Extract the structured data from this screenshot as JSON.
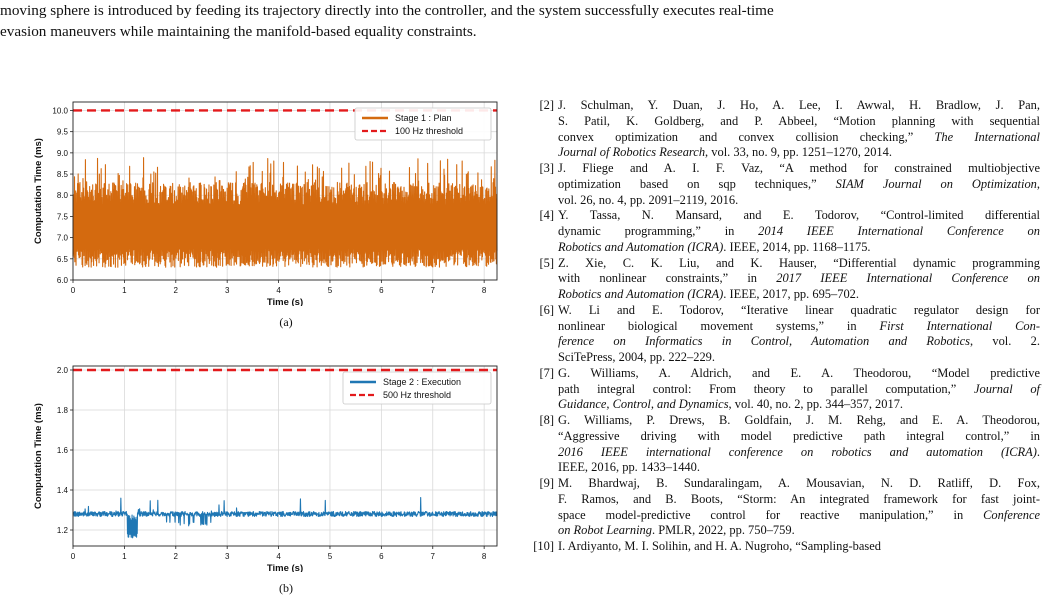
{
  "intro": {
    "lines": [
      "moving sphere is introduced by feeding its trajectory directly into the controller, and the system successfully executes real-time",
      "evasion maneuvers while maintaining the manifold-based equality constraints."
    ]
  },
  "figures": [
    {
      "caption": "(a)",
      "chart_data": {
        "type": "line",
        "xlabel": "Time (s)",
        "ylabel": "Computation Time (ms)",
        "xlim": [
          0,
          8.25
        ],
        "ylim": [
          6.0,
          10.2
        ],
        "xticks": [
          "0",
          "1",
          "2",
          "3",
          "4",
          "5",
          "6",
          "7",
          "8"
        ],
        "yticks": [
          "6.0",
          "6.5",
          "7.0",
          "7.5",
          "8.0",
          "8.5",
          "9.0",
          "9.5",
          "10.0"
        ],
        "grid": true,
        "legend_position": "top-right",
        "series": [
          {
            "name": "Stage 1 : Plan",
            "color": "#d46a0f",
            "style": "solid",
            "base": 7.1,
            "low": 6.3,
            "high": 8.3,
            "spike_max": 8.9
          },
          {
            "name": "100 Hz threshold",
            "color": "#e31a1c",
            "style": "dashed",
            "value": 10.0
          }
        ]
      }
    },
    {
      "caption": "(b)",
      "chart_data": {
        "type": "line",
        "xlabel": "Time (s)",
        "ylabel": "Computation Time (ms)",
        "xlim": [
          0,
          8.25
        ],
        "ylim": [
          1.12,
          2.02
        ],
        "xticks": [
          "0",
          "1",
          "2",
          "3",
          "4",
          "5",
          "6",
          "7",
          "8"
        ],
        "yticks": [
          "1.2",
          "1.4",
          "1.6",
          "1.8",
          "2.0"
        ],
        "grid": true,
        "legend_position": "top-right",
        "series": [
          {
            "name": "Stage 2 : Execution",
            "color": "#1f77b4",
            "style": "solid",
            "base": 1.28,
            "dip_at": [
              1.05,
              1.25
            ],
            "dip_value": 1.16,
            "spike_max": 1.37
          },
          {
            "name": "500 Hz threshold",
            "color": "#e31a1c",
            "style": "dashed",
            "value": 2.0
          }
        ]
      }
    }
  ],
  "references": [
    {
      "num": "[2]",
      "lines": [
        [
          "J. Schulman, Y. Duan, J. Ho, A. Lee, I. Awwal, H. Bradlow, J. Pan,"
        ],
        [
          "S. Patil, K. Goldberg, and P. Abbeel, “Motion planning with sequential"
        ],
        [
          "convex optimization and convex collision checking,” ",
          "<i>The International</i>"
        ],
        [
          "<i>Journal of Robotics Research</i>",
          ", vol. 33, no. 9, pp. 1251–1270, 2014."
        ]
      ]
    },
    {
      "num": "[3]",
      "lines": [
        [
          "J. Fliege and A. I. F. Vaz, “A method for constrained multiobjective"
        ],
        [
          "optimization based on sqp techniques,” ",
          "<i>SIAM Journal on Optimization</i>",
          ","
        ],
        [
          "vol. 26, no. 4, pp. 2091–2119, 2016."
        ]
      ]
    },
    {
      "num": "[4]",
      "lines": [
        [
          "Y. Tassa, N. Mansard, and E. Todorov, “Control-limited differential"
        ],
        [
          "dynamic programming,” in ",
          "<i>2014 IEEE International Conference on</i>"
        ],
        [
          "<i>Robotics and Automation (ICRA)</i>",
          ".   IEEE, 2014, pp. 1168–1175."
        ]
      ]
    },
    {
      "num": "[5]",
      "lines": [
        [
          "Z. Xie, C. K. Liu, and K. Hauser, “Differential dynamic programming"
        ],
        [
          "with nonlinear constraints,” in ",
          "<i>2017 IEEE International Conference on</i>"
        ],
        [
          "<i>Robotics and Automation (ICRA)</i>",
          ".   IEEE, 2017, pp. 695–702."
        ]
      ]
    },
    {
      "num": "[6]",
      "lines": [
        [
          "W. Li and E. Todorov, “Iterative linear quadratic regulator design for"
        ],
        [
          "nonlinear biological movement systems,” in ",
          "<i>First International Con-</i>"
        ],
        [
          "<i>ference on Informatics in Control, Automation and Robotics</i>",
          ", vol. 2."
        ],
        [
          "SciTePress, 2004, pp. 222–229."
        ]
      ]
    },
    {
      "num": "[7]",
      "lines": [
        [
          "G. Williams, A. Aldrich, and E. A. Theodorou, “Model predictive"
        ],
        [
          "path integral control: From theory to parallel computation,” ",
          "<i>Journal of</i>"
        ],
        [
          "<i>Guidance, Control, and Dynamics</i>",
          ", vol. 40, no. 2, pp. 344–357, 2017."
        ]
      ]
    },
    {
      "num": "[8]",
      "lines": [
        [
          "G. Williams, P. Drews, B. Goldfain, J. M. Rehg, and E. A. Theodorou,"
        ],
        [
          "“Aggressive driving with model predictive path integral control,” in"
        ],
        [
          "<i>2016 IEEE international conference on robotics and automation (ICRA)</i>",
          "."
        ],
        [
          "IEEE, 2016, pp. 1433–1440."
        ]
      ]
    },
    {
      "num": "[9]",
      "lines": [
        [
          "M. Bhardwaj, B. Sundaralingam, A. Mousavian, N. D. Ratliff, D. Fox,"
        ],
        [
          "F. Ramos, and B. Boots, “Storm: An integrated framework for fast joint-"
        ],
        [
          "space model-predictive control for reactive manipulation,” in ",
          "<i>Conference</i>"
        ],
        [
          "<i>on Robot Learning</i>",
          ".   PMLR, 2022, pp. 750–759."
        ]
      ]
    },
    {
      "num": "[10]",
      "lines": [
        [
          "I. Ardiyanto, M. I. Solihin, and H. A. Nugroho, “Sampling-based"
        ]
      ]
    }
  ]
}
